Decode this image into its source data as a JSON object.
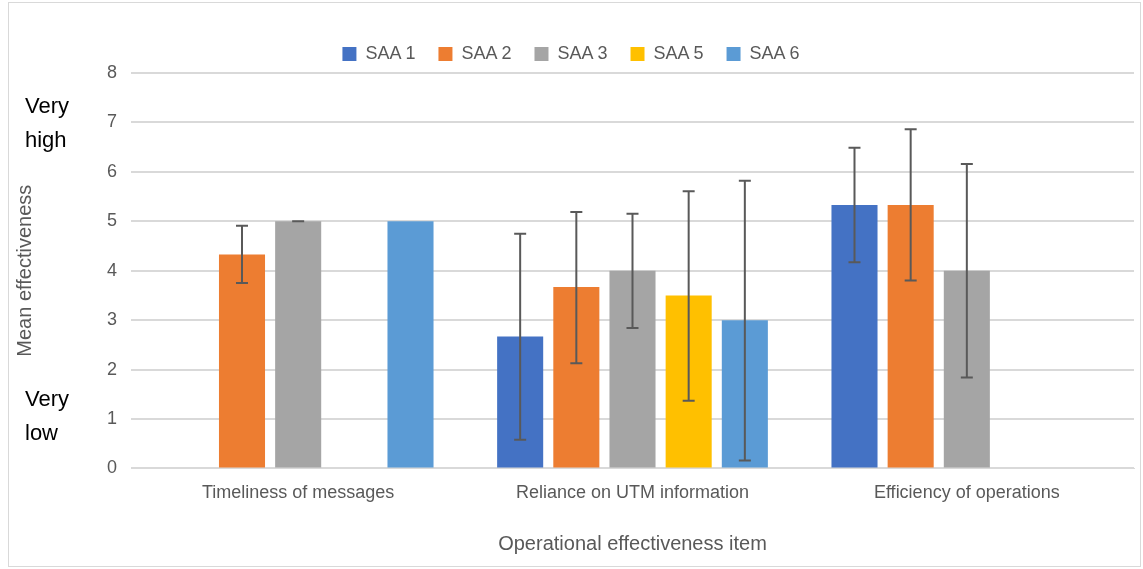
{
  "chart_data": {
    "type": "bar",
    "xlabel": "Operational effectiveness item",
    "ylabel": "Mean effectiveness",
    "categories": [
      "Timeliness of messages",
      "Reliance on UTM information",
      "Efficiency of operations"
    ],
    "series": [
      {
        "name": "SAA 1",
        "color": "#4472c4",
        "values": [
          null,
          2.67,
          5.33
        ],
        "errors": [
          null,
          [
            0.58,
            4.75
          ],
          [
            4.17,
            6.49
          ]
        ]
      },
      {
        "name": "SAA 2",
        "color": "#ed7d31",
        "values": [
          4.33,
          3.67,
          5.33
        ],
        "errors": [
          [
            3.75,
            4.91
          ],
          [
            2.13,
            5.19
          ],
          [
            3.8,
            6.86
          ]
        ]
      },
      {
        "name": "SAA 3",
        "color": "#a5a5a5",
        "values": [
          5,
          4,
          4
        ],
        "errors": [
          [
            5,
            5
          ],
          [
            2.84,
            5.15
          ],
          [
            1.84,
            6.16
          ]
        ]
      },
      {
        "name": "SAA 5",
        "color": "#ffc000",
        "values": [
          null,
          3.5,
          null
        ],
        "errors": [
          null,
          [
            1.37,
            5.61
          ],
          null
        ]
      },
      {
        "name": "SAA 6",
        "color": "#5b9bd5",
        "values": [
          5,
          3,
          null
        ],
        "errors": [
          null,
          [
            0.16,
            5.82
          ],
          null
        ]
      }
    ],
    "ylim": [
      0,
      8
    ],
    "yticks": [
      0,
      1,
      2,
      3,
      4,
      5,
      6,
      7,
      8
    ],
    "grid": "y",
    "legend": "top",
    "annotations": [
      "Very high",
      "Very low"
    ]
  }
}
